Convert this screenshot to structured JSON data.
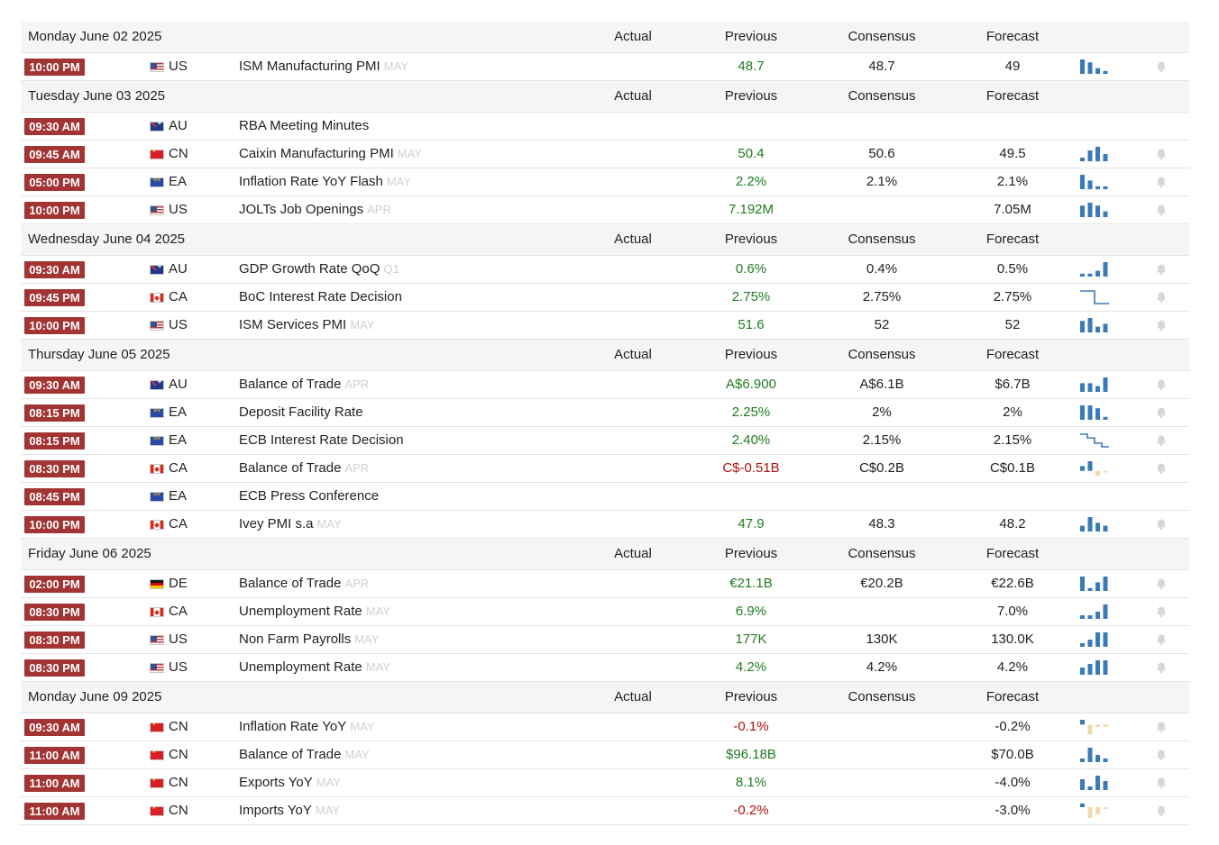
{
  "columns": {
    "actual": "Actual",
    "previous": "Previous",
    "consensus": "Consensus",
    "forecast": "Forecast"
  },
  "colors": {
    "time_badge": "#a33434",
    "positive": "#1f7a1f",
    "negative": "#b00e0e",
    "bar": "#3a7ab8",
    "bar_negative": "#f3d9a8"
  },
  "days": [
    {
      "date": "Monday June 02 2025",
      "events": [
        {
          "time": "10:00 PM",
          "country": "US",
          "flag": "us",
          "event": "ISM Manufacturing PMI",
          "ref": "MAY",
          "actual": "",
          "previous": "48.7",
          "previous_tone": "pos",
          "consensus": "48.7",
          "forecast": "49",
          "spark": {
            "type": "bar",
            "values": [
              5,
              4,
              2,
              1
            ]
          },
          "bell_icon": "bell-icon"
        }
      ]
    },
    {
      "date": "Tuesday June 03 2025",
      "events": [
        {
          "time": "09:30 AM",
          "country": "AU",
          "flag": "au",
          "event": "RBA Meeting Minutes",
          "ref": "",
          "actual": "",
          "previous": "",
          "previous_tone": "",
          "consensus": "",
          "forecast": "",
          "spark": null,
          "bell_icon": ""
        },
        {
          "time": "09:45 AM",
          "country": "CN",
          "flag": "cn",
          "event": "Caixin Manufacturing PMI",
          "ref": "MAY",
          "actual": "",
          "previous": "50.4",
          "previous_tone": "pos",
          "consensus": "50.6",
          "forecast": "49.5",
          "spark": {
            "type": "bar",
            "values": [
              1,
              3,
              4,
              2
            ]
          },
          "bell_icon": "bell-icon"
        },
        {
          "time": "05:00 PM",
          "country": "EA",
          "flag": "ea",
          "event": "Inflation Rate YoY Flash",
          "ref": "MAY",
          "actual": "",
          "previous": "2.2%",
          "previous_tone": "pos",
          "consensus": "2.1%",
          "forecast": "2.1%",
          "spark": {
            "type": "bar",
            "values": [
              5,
              3,
              1,
              1
            ]
          },
          "bell_icon": "bell-icon"
        },
        {
          "time": "10:00 PM",
          "country": "US",
          "flag": "us",
          "event": "JOLTs Job Openings",
          "ref": "APR",
          "actual": "",
          "previous": "7.192M",
          "previous_tone": "pos",
          "consensus": "",
          "forecast": "7.05M",
          "spark": {
            "type": "bar",
            "values": [
              4,
              5,
              4,
              2
            ]
          },
          "bell_icon": "bell-icon"
        }
      ]
    },
    {
      "date": "Wednesday June 04 2025",
      "events": [
        {
          "time": "09:30 AM",
          "country": "AU",
          "flag": "au",
          "event": "GDP Growth Rate QoQ",
          "ref": "Q1",
          "actual": "",
          "previous": "0.6%",
          "previous_tone": "pos",
          "consensus": "0.4%",
          "forecast": "0.5%",
          "spark": {
            "type": "bar",
            "values": [
              1,
              1,
              2,
              5
            ]
          },
          "bell_icon": "bell-icon"
        },
        {
          "time": "09:45 PM",
          "country": "CA",
          "flag": "ca",
          "event": "BoC Interest Rate Decision",
          "ref": "",
          "actual": "",
          "previous": "2.75%",
          "previous_tone": "pos",
          "consensus": "2.75%",
          "forecast": "2.75%",
          "spark": {
            "type": "line",
            "values": [
              3,
              3,
              2.75,
              2.75
            ]
          },
          "bell_icon": "bell-icon"
        },
        {
          "time": "10:00 PM",
          "country": "US",
          "flag": "us",
          "event": "ISM Services PMI",
          "ref": "MAY",
          "actual": "",
          "previous": "51.6",
          "previous_tone": "pos",
          "consensus": "52",
          "forecast": "52",
          "spark": {
            "type": "bar",
            "values": [
              4,
              5,
              2,
              3
            ]
          },
          "bell_icon": "bell-icon"
        }
      ]
    },
    {
      "date": "Thursday June 05 2025",
      "events": [
        {
          "time": "09:30 AM",
          "country": "AU",
          "flag": "au",
          "event": "Balance of Trade",
          "ref": "APR",
          "actual": "",
          "previous": "A$6.900",
          "previous_tone": "pos",
          "consensus": "A$6.1B",
          "forecast": "$6.7B",
          "spark": {
            "type": "bar",
            "values": [
              3,
              3,
              2,
              5
            ]
          },
          "bell_icon": "bell-icon"
        },
        {
          "time": "08:15 PM",
          "country": "EA",
          "flag": "ea",
          "event": "Deposit Facility Rate",
          "ref": "",
          "actual": "",
          "previous": "2.25%",
          "previous_tone": "pos",
          "consensus": "2%",
          "forecast": "2%",
          "spark": {
            "type": "bar",
            "values": [
              5,
              5,
              4,
              1
            ]
          },
          "bell_icon": "bell-icon"
        },
        {
          "time": "08:15 PM",
          "country": "EA",
          "flag": "ea",
          "event": "ECB Interest Rate Decision",
          "ref": "",
          "actual": "",
          "previous": "2.40%",
          "previous_tone": "pos",
          "consensus": "2.15%",
          "forecast": "2.15%",
          "spark": {
            "type": "line",
            "values": [
              3,
              2.75,
              2.4,
              2.15
            ]
          },
          "bell_icon": "bell-icon"
        },
        {
          "time": "08:30 PM",
          "country": "CA",
          "flag": "ca",
          "event": "Balance of Trade",
          "ref": "APR",
          "actual": "",
          "previous": "C$-0.51B",
          "previous_tone": "neg",
          "consensus": "C$0.2B",
          "forecast": "C$0.1B",
          "spark": {
            "type": "bar",
            "values": [
              1.5,
              3,
              -1.5,
              -0.5
            ]
          },
          "bell_icon": "bell-icon"
        },
        {
          "time": "08:45 PM",
          "country": "EA",
          "flag": "ea",
          "event": "ECB Press Conference",
          "ref": "",
          "actual": "",
          "previous": "",
          "previous_tone": "",
          "consensus": "",
          "forecast": "",
          "spark": null,
          "bell_icon": ""
        },
        {
          "time": "10:00 PM",
          "country": "CA",
          "flag": "ca",
          "event": "Ivey PMI s.a",
          "ref": "MAY",
          "actual": "",
          "previous": "47.9",
          "previous_tone": "pos",
          "consensus": "48.3",
          "forecast": "48.2",
          "spark": {
            "type": "bar",
            "values": [
              2,
              5,
              3,
              2
            ]
          },
          "bell_icon": "bell-icon"
        }
      ]
    },
    {
      "date": "Friday June 06 2025",
      "events": [
        {
          "time": "02:00 PM",
          "country": "DE",
          "flag": "de",
          "event": "Balance of Trade",
          "ref": "APR",
          "actual": "",
          "previous": "€21.1B",
          "previous_tone": "pos",
          "consensus": "€20.2B",
          "forecast": "€22.6B",
          "spark": {
            "type": "bar",
            "values": [
              5,
              1,
              3,
              5
            ]
          },
          "bell_icon": "bell-icon"
        },
        {
          "time": "08:30 PM",
          "country": "CA",
          "flag": "ca",
          "event": "Unemployment Rate",
          "ref": "MAY",
          "actual": "",
          "previous": "6.9%",
          "previous_tone": "pos",
          "consensus": "",
          "forecast": "7.0%",
          "spark": {
            "type": "bar",
            "values": [
              1,
              1,
              2,
              4
            ]
          },
          "bell_icon": "bell-icon"
        },
        {
          "time": "08:30 PM",
          "country": "US",
          "flag": "us",
          "event": "Non Farm Payrolls",
          "ref": "MAY",
          "actual": "",
          "previous": "177K",
          "previous_tone": "pos",
          "consensus": "130K",
          "forecast": "130.0K",
          "spark": {
            "type": "bar",
            "values": [
              1,
              2,
              4,
              4
            ]
          },
          "bell_icon": "bell-icon"
        },
        {
          "time": "08:30 PM",
          "country": "US",
          "flag": "us",
          "event": "Unemployment Rate",
          "ref": "MAY",
          "actual": "",
          "previous": "4.2%",
          "previous_tone": "pos",
          "consensus": "4.2%",
          "forecast": "4.2%",
          "spark": {
            "type": "bar",
            "values": [
              2,
              3,
              4,
              4
            ]
          },
          "bell_icon": "bell-icon"
        }
      ]
    },
    {
      "date": "Monday June 09 2025",
      "events": [
        {
          "time": "09:30 AM",
          "country": "CN",
          "flag": "cn",
          "event": "Inflation Rate YoY",
          "ref": "MAY",
          "actual": "",
          "previous": "-0.1%",
          "previous_tone": "neg",
          "consensus": "",
          "forecast": "-0.2%",
          "spark": {
            "type": "bar",
            "values": [
              1,
              -2,
              -0.5,
              -0.5
            ]
          },
          "bell_icon": "bell-icon"
        },
        {
          "time": "11:00 AM",
          "country": "CN",
          "flag": "cn",
          "event": "Balance of Trade",
          "ref": "MAY",
          "actual": "",
          "previous": "$96.18B",
          "previous_tone": "pos",
          "consensus": "",
          "forecast": "$70.0B",
          "spark": {
            "type": "bar",
            "values": [
              1,
              4,
              2,
              1
            ]
          },
          "bell_icon": "bell-icon"
        },
        {
          "time": "11:00 AM",
          "country": "CN",
          "flag": "cn",
          "event": "Exports YoY",
          "ref": "MAY",
          "actual": "",
          "previous": "8.1%",
          "previous_tone": "pos",
          "consensus": "",
          "forecast": "-4.0%",
          "spark": {
            "type": "bar",
            "values": [
              3,
              1,
              4,
              2.5
            ]
          },
          "bell_icon": "bell-icon"
        },
        {
          "time": "11:00 AM",
          "country": "CN",
          "flag": "cn",
          "event": "Imports YoY",
          "ref": "MAY",
          "actual": "",
          "previous": "-0.2%",
          "previous_tone": "neg",
          "consensus": "",
          "forecast": "-3.0%",
          "spark": {
            "type": "bar",
            "values": [
              1,
              -3,
              -2,
              -0.5
            ]
          },
          "bell_icon": "bell-icon"
        }
      ]
    }
  ]
}
